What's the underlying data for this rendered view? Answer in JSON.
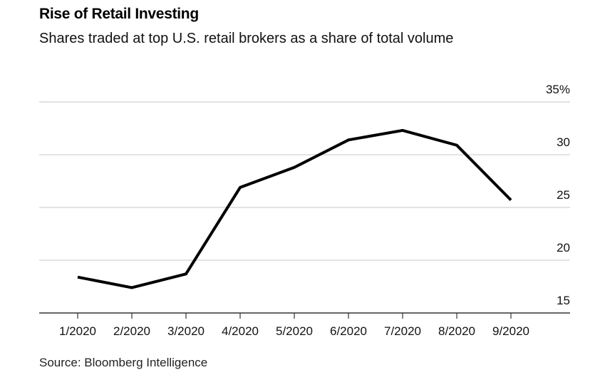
{
  "chart_data": {
    "type": "line",
    "title": "Rise of Retail Investing",
    "subtitle": "Shares traded at top U.S. retail brokers as a share of total volume",
    "source": "Source: Bloomberg Intelligence",
    "categories": [
      "1/2020",
      "2/2020",
      "3/2020",
      "4/2020",
      "5/2020",
      "6/2020",
      "7/2020",
      "8/2020",
      "9/2020"
    ],
    "values": [
      18.4,
      17.4,
      18.7,
      26.9,
      28.8,
      31.4,
      32.3,
      30.9,
      25.7
    ],
    "ylim": [
      15,
      35
    ],
    "yticks": [
      15,
      20,
      25,
      30,
      35
    ],
    "ytick_labels": [
      "15",
      "20",
      "25",
      "30",
      "35%"
    ],
    "y_axis_side": "right",
    "grid": true,
    "line_color": "#000000",
    "grid_color": "#d9d9d9"
  }
}
